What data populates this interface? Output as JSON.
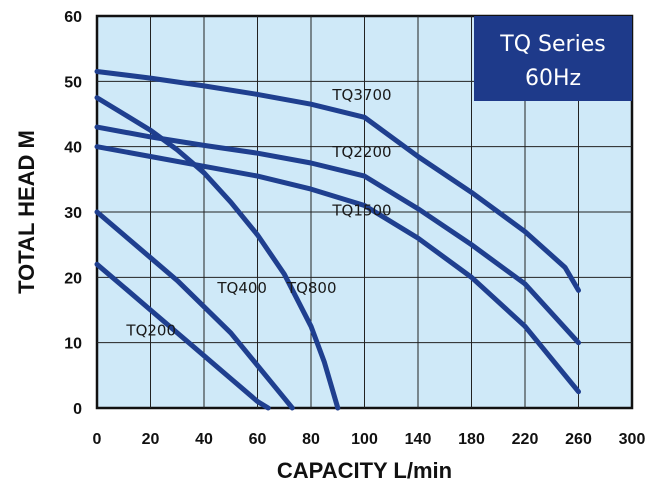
{
  "chart_data": {
    "type": "line",
    "badge": {
      "line1": "TQ Series",
      "line2": "60Hz"
    },
    "xlabel": "CAPACITY L/min",
    "ylabel": "TOTAL HEAD M",
    "x_ticks": [
      "0",
      "20",
      "40",
      "60",
      "80",
      "100",
      "140",
      "180",
      "220",
      "260",
      "300"
    ],
    "y_ticks": [
      "0",
      "10",
      "20",
      "30",
      "40",
      "50",
      "60"
    ],
    "ylim": [
      0,
      60
    ],
    "grid": true,
    "colors": {
      "plot_bg": "#cfe9f8",
      "curve": "#1f3f8f",
      "badge_bg": "#1e3a8a",
      "grid": "#222222"
    },
    "series": [
      {
        "name": "TQ200",
        "label": "TQ200",
        "points": [
          [
            0,
            22
          ],
          [
            10,
            18.5
          ],
          [
            20,
            15
          ],
          [
            30,
            11.5
          ],
          [
            40,
            8
          ],
          [
            50,
            4.5
          ],
          [
            60,
            1
          ],
          [
            64,
            0
          ]
        ]
      },
      {
        "name": "TQ400",
        "label": "TQ400",
        "points": [
          [
            0,
            30
          ],
          [
            10,
            26.5
          ],
          [
            20,
            23
          ],
          [
            30,
            19.5
          ],
          [
            40,
            15.5
          ],
          [
            50,
            11.5
          ],
          [
            60,
            6.5
          ],
          [
            70,
            1.5
          ],
          [
            73,
            0
          ]
        ]
      },
      {
        "name": "TQ800",
        "label": "TQ800",
        "points": [
          [
            0,
            47.5
          ],
          [
            10,
            45
          ],
          [
            20,
            42.5
          ],
          [
            30,
            39.5
          ],
          [
            40,
            36
          ],
          [
            50,
            31.5
          ],
          [
            60,
            26.5
          ],
          [
            70,
            20.5
          ],
          [
            80,
            12.5
          ],
          [
            85,
            7
          ],
          [
            90,
            0
          ]
        ]
      },
      {
        "name": "TQ1500",
        "label": "TQ1500",
        "points": [
          [
            0,
            40
          ],
          [
            20,
            38.5
          ],
          [
            40,
            37
          ],
          [
            60,
            35.5
          ],
          [
            80,
            33.5
          ],
          [
            100,
            31
          ],
          [
            140,
            26
          ],
          [
            180,
            20
          ],
          [
            220,
            12.5
          ],
          [
            260,
            2.5
          ]
        ]
      },
      {
        "name": "TQ2200",
        "label": "TQ2200",
        "points": [
          [
            0,
            43
          ],
          [
            20,
            41.5
          ],
          [
            40,
            40.2
          ],
          [
            60,
            39
          ],
          [
            80,
            37.5
          ],
          [
            100,
            35.5
          ],
          [
            140,
            30.5
          ],
          [
            180,
            25
          ],
          [
            220,
            19
          ],
          [
            260,
            10
          ]
        ]
      },
      {
        "name": "TQ3700",
        "label": "TQ3700",
        "points": [
          [
            0,
            51.5
          ],
          [
            20,
            50.5
          ],
          [
            40,
            49.3
          ],
          [
            60,
            48
          ],
          [
            80,
            46.5
          ],
          [
            100,
            44.5
          ],
          [
            140,
            38.5
          ],
          [
            180,
            33
          ],
          [
            220,
            27
          ],
          [
            250,
            21.5
          ],
          [
            260,
            18
          ]
        ]
      }
    ]
  }
}
